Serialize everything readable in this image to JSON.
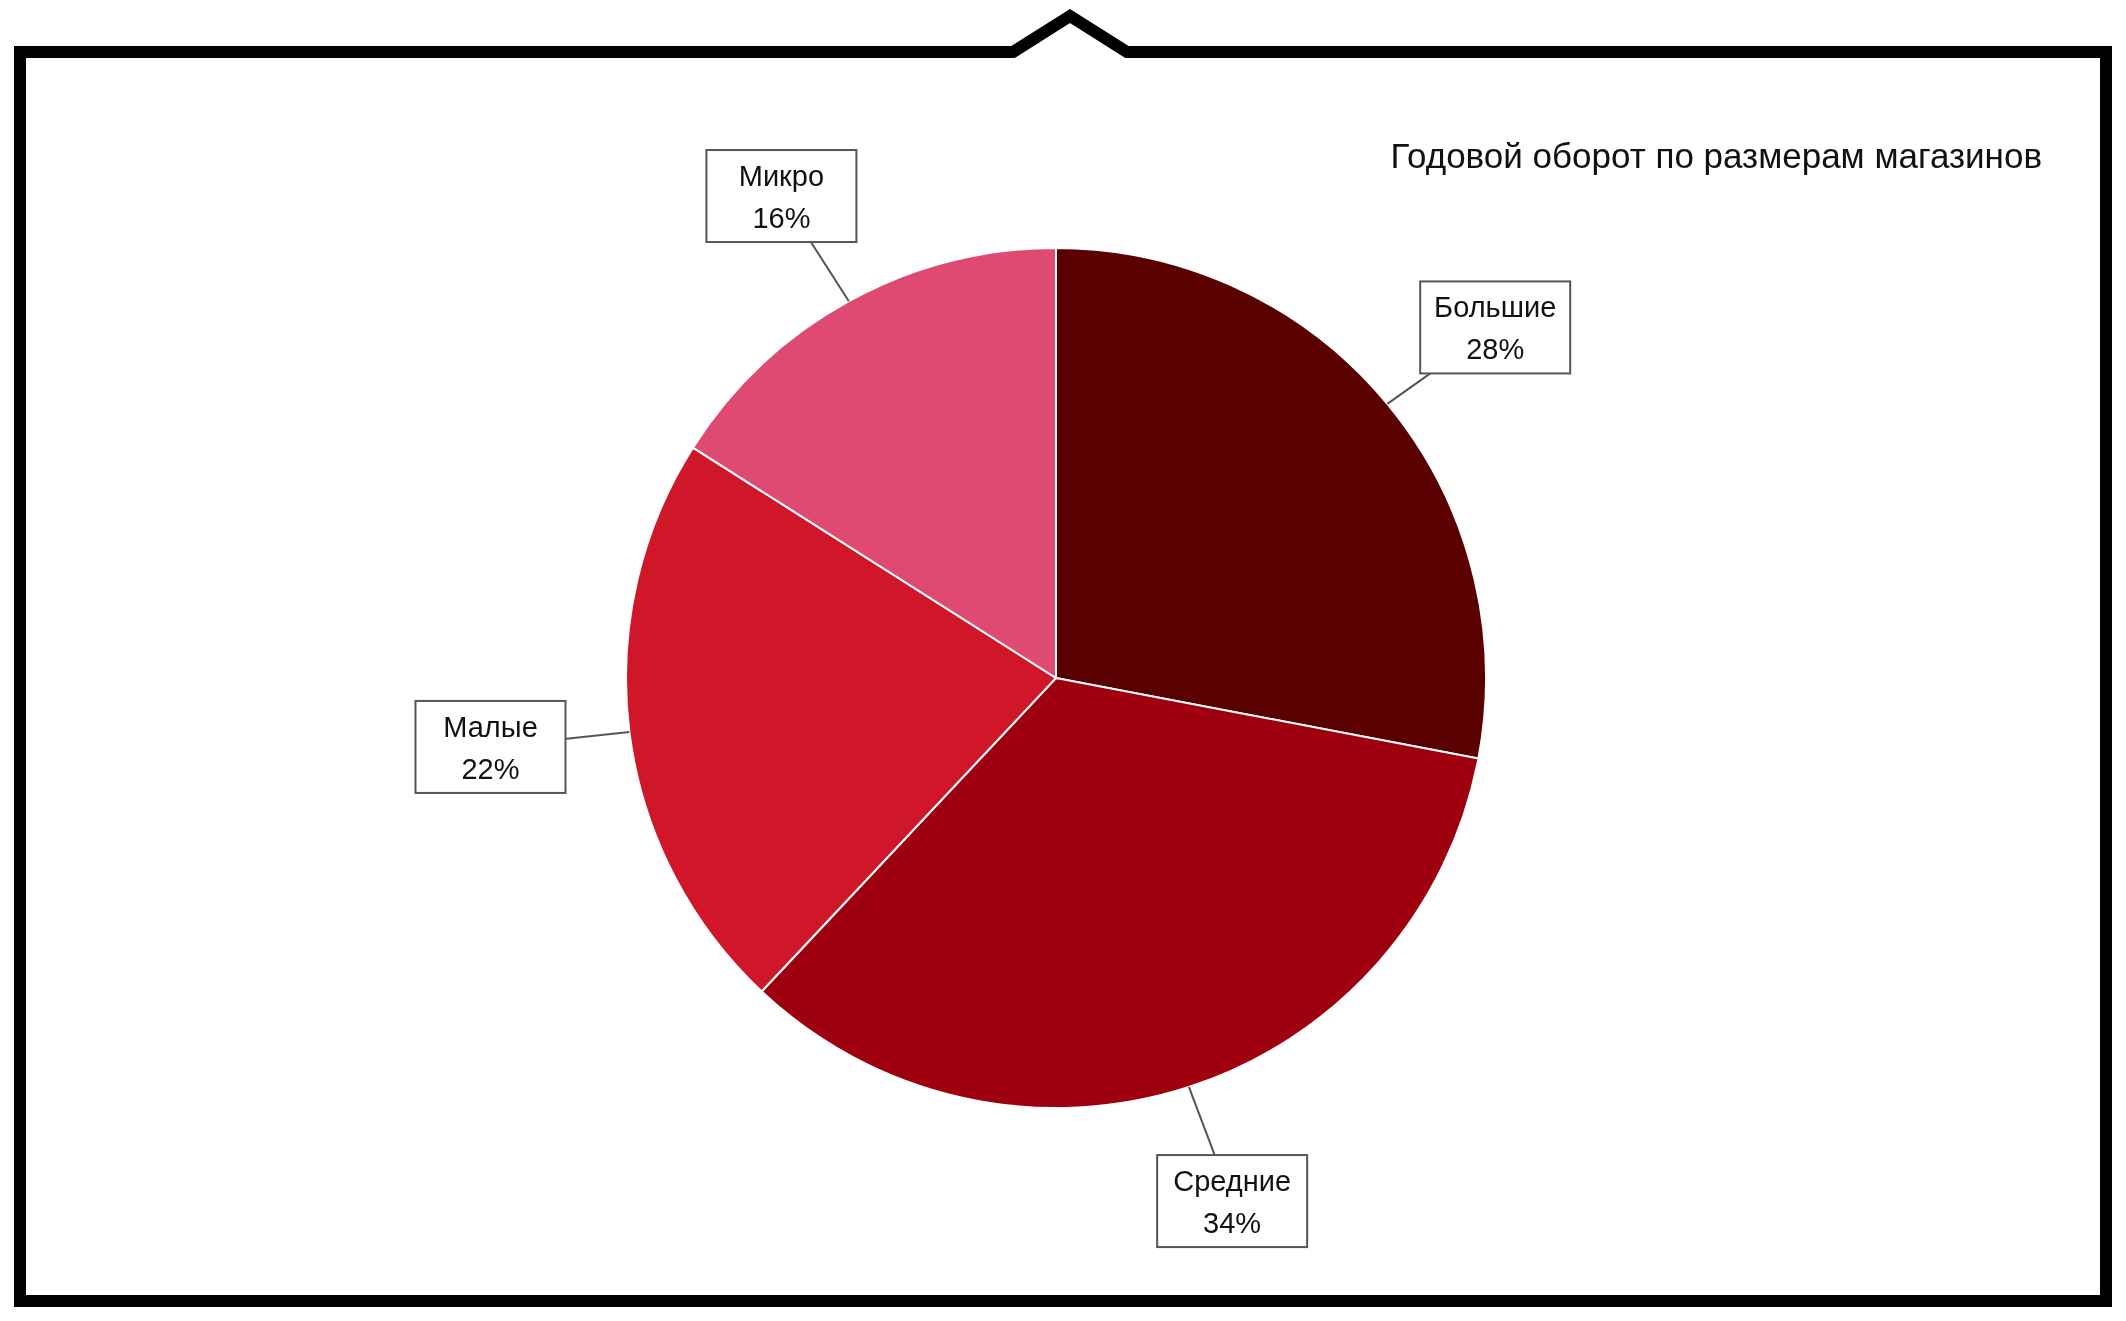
{
  "chart_data": {
    "type": "pie",
    "title": "Годовой оборот по размерам магазинов",
    "categories": [
      "Большие",
      "Средние",
      "Малые",
      "Микро"
    ],
    "values": [
      28,
      34,
      22,
      16
    ],
    "value_labels": [
      "28%",
      "34%",
      "22%",
      "16%"
    ],
    "colors": [
      "#5a0000",
      "#9e0010",
      "#cf1729",
      "#de4a72"
    ]
  }
}
